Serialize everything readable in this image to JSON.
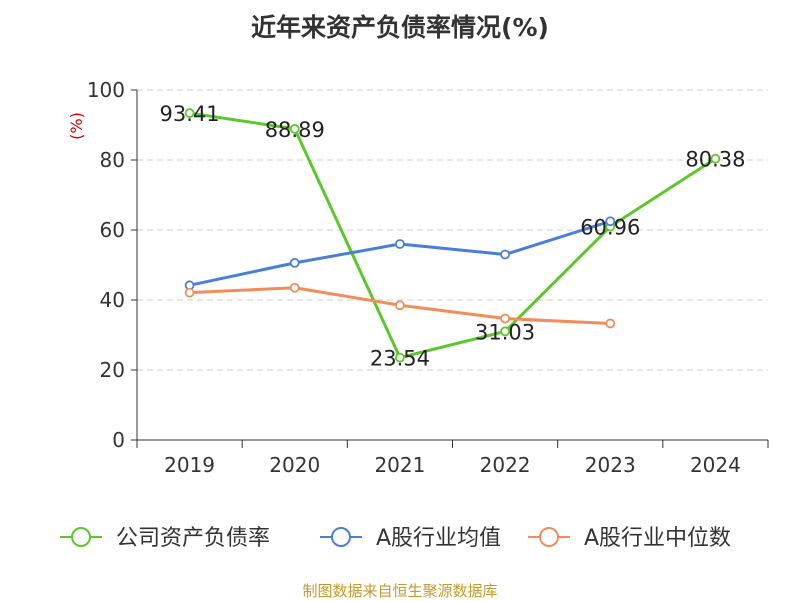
{
  "title": "近年来资产负债率情况(%)",
  "source": "制图数据来自恒生聚源数据库",
  "chart_data": {
    "type": "line",
    "title": "近年来资产负债率情况(%)",
    "ylabel": "(%)",
    "xlabel": "",
    "categories": [
      "2019",
      "2020",
      "2021",
      "2022",
      "2023",
      "2024"
    ],
    "ylim": [
      0,
      100
    ],
    "yticks": [
      0,
      20,
      40,
      60,
      80,
      100
    ],
    "grid": "horizontal dashed",
    "legend_position": "bottom",
    "series": [
      {
        "name": "公司资产负债率",
        "color": "#5cc72b",
        "values": [
          93.41,
          88.89,
          23.54,
          31.03,
          60.96,
          80.38
        ],
        "labels": [
          "93.41",
          "88.89",
          "23.54",
          "31.03",
          "60.96",
          "80.38"
        ]
      },
      {
        "name": "A股行业均值",
        "color": "#4a7fd8",
        "values": [
          44.2,
          50.6,
          56.0,
          53.0,
          62.5,
          null
        ]
      },
      {
        "name": "A股行业中位数",
        "color": "#f28c5a",
        "values": [
          42.1,
          43.5,
          38.5,
          34.7,
          33.3,
          null
        ]
      }
    ]
  }
}
